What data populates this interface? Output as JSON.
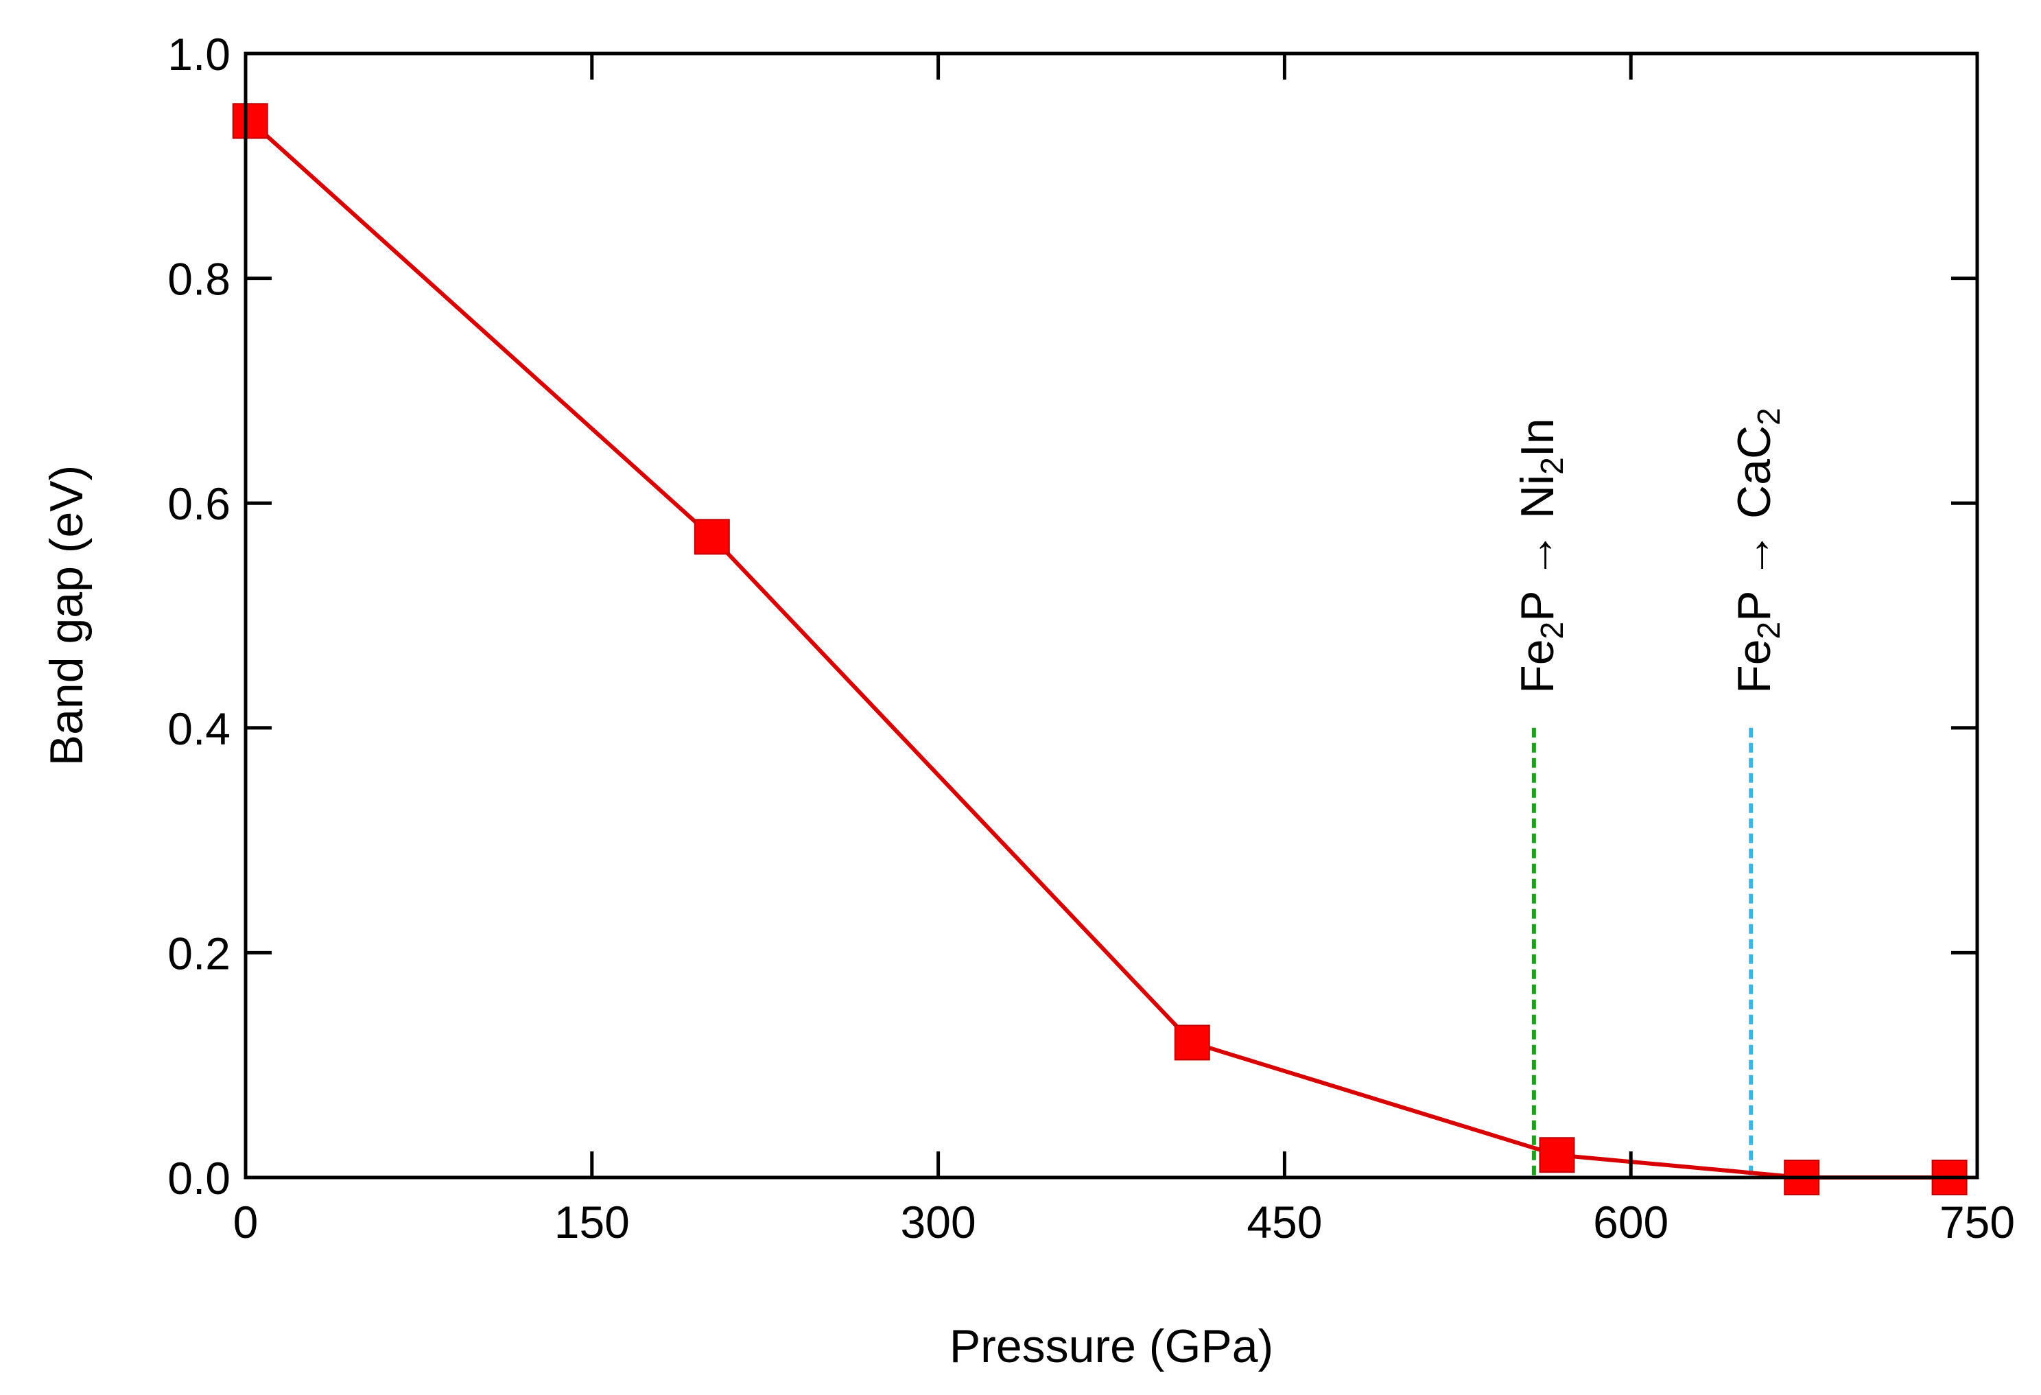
{
  "chart_data": {
    "type": "line",
    "title": "",
    "xlabel": "Pressure (GPa)",
    "ylabel": "Band gap (eV)",
    "xlim": [
      0,
      750
    ],
    "ylim": [
      0.0,
      1.0
    ],
    "xticks": [
      0,
      150,
      300,
      450,
      600,
      750
    ],
    "xtick_labels": [
      "0",
      "150",
      "300",
      "450",
      "600",
      "750"
    ],
    "yticks": [
      0.0,
      0.2,
      0.4,
      0.6,
      0.8,
      1.0
    ],
    "ytick_labels": [
      "0.0",
      "0.2",
      "0.4",
      "0.6",
      "0.8",
      "1.0"
    ],
    "grid": false,
    "series": [
      {
        "name": "Band gap",
        "color": "#d90000",
        "marker": "square",
        "x": [
          2,
          202,
          410,
          568,
          674,
          738
        ],
        "y": [
          0.94,
          0.57,
          0.12,
          0.02,
          0.0,
          0.0
        ]
      }
    ],
    "annotations": [
      {
        "x": 558,
        "y_top": 0.4,
        "line_color": "#1aa31a",
        "line_style": "dashed",
        "text_parts": [
          "Fe",
          "2",
          "P → Ni",
          "2",
          "In"
        ],
        "text": "Fe2P → Ni2In"
      },
      {
        "x": 652,
        "y_top": 0.4,
        "line_color": "#3db4e6",
        "line_style": "dashed",
        "text_parts": [
          "Fe",
          "2",
          "P → CaC",
          "2",
          ""
        ],
        "text": "Fe2P → CaC2"
      }
    ]
  }
}
